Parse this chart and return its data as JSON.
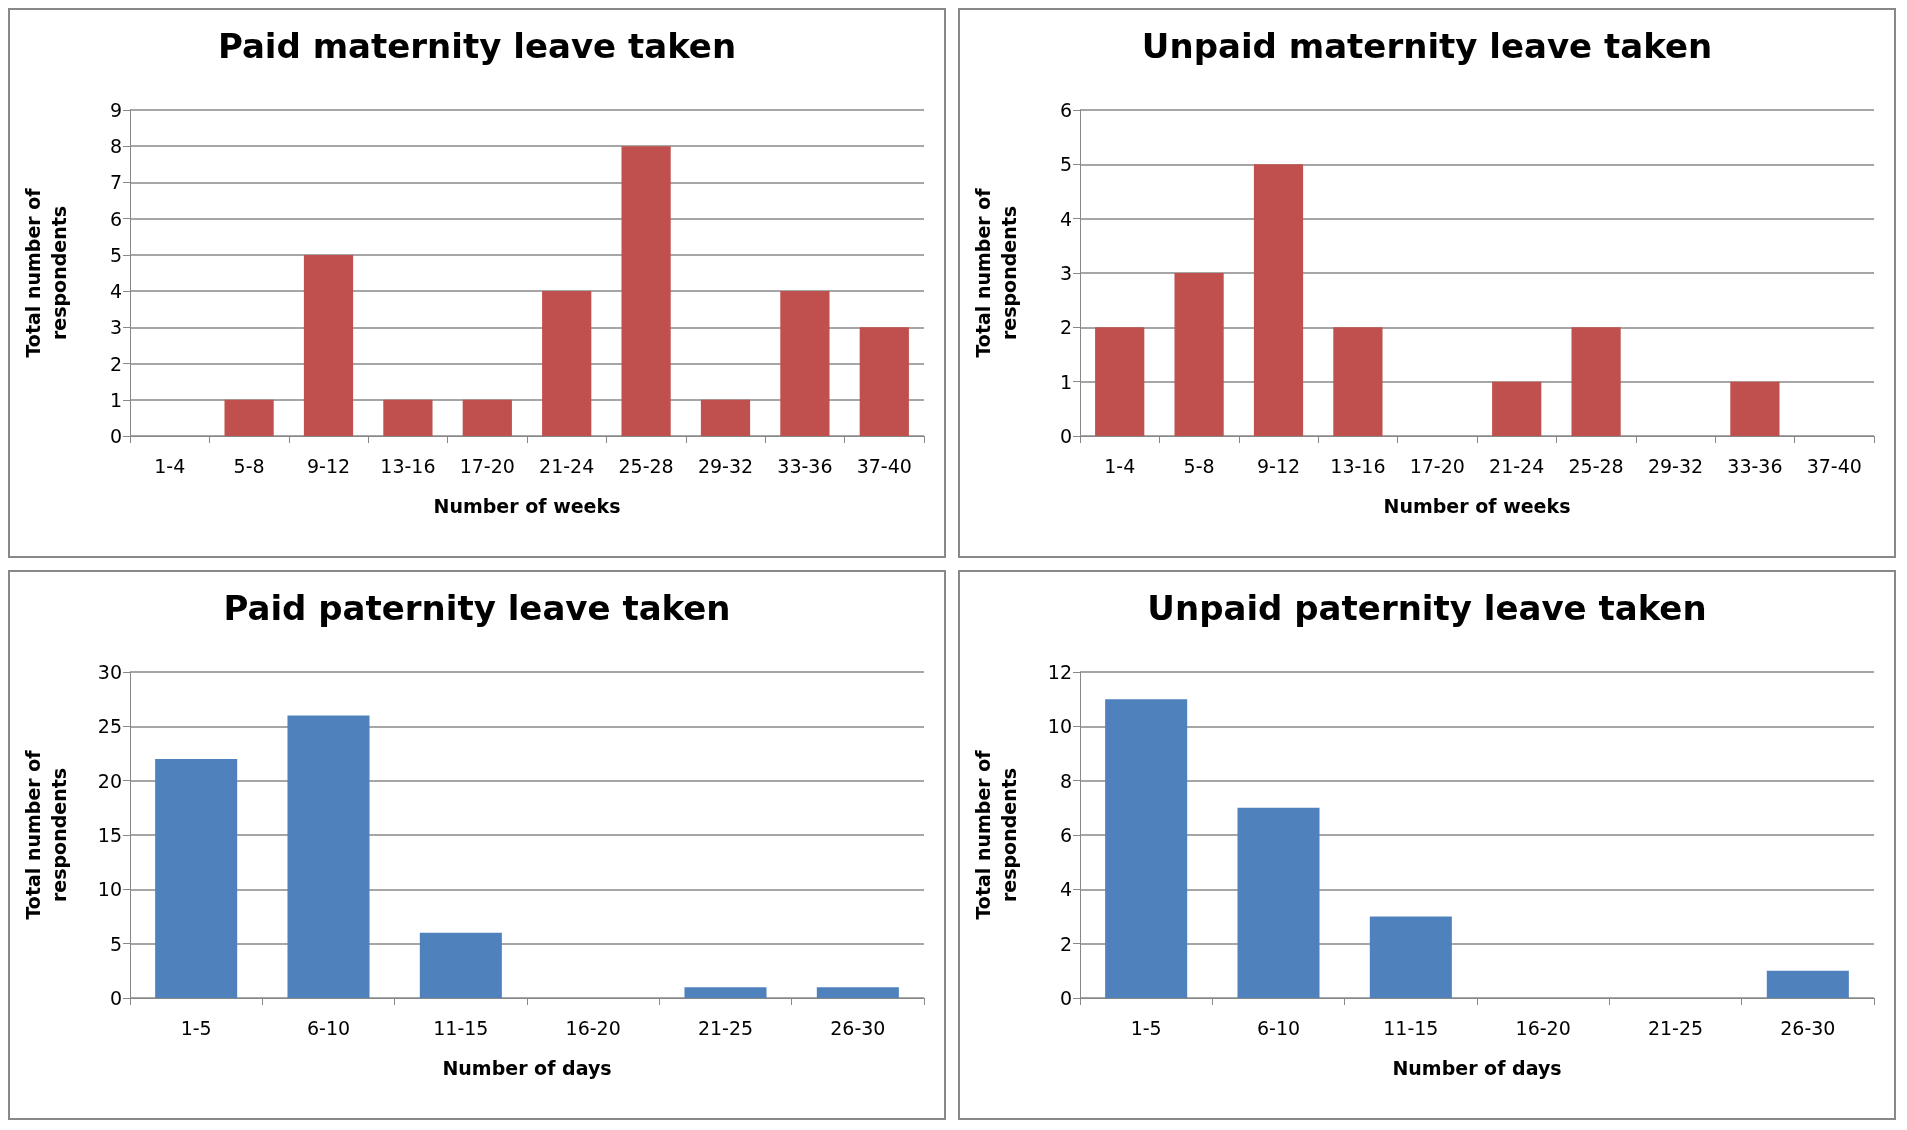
{
  "chart_data": [
    {
      "type": "bar",
      "title": "Paid maternity leave taken",
      "xlabel": "Number of weeks",
      "ylabel": "Total number of respondents",
      "categories": [
        "1-4",
        "5-8",
        "9-12",
        "13-16",
        "17-20",
        "21-24",
        "25-28",
        "29-32",
        "33-36",
        "37-40"
      ],
      "values": [
        0,
        1,
        5,
        1,
        1,
        4,
        8,
        1,
        4,
        3
      ],
      "color": "#c0504d",
      "ylim": [
        0,
        9
      ],
      "yticks": [
        0,
        1,
        2,
        3,
        4,
        5,
        6,
        7,
        8,
        9
      ],
      "grid": "y"
    },
    {
      "type": "bar",
      "title": "Unpaid maternity leave taken",
      "xlabel": "Number of weeks",
      "ylabel": "Total number of respondents",
      "categories": [
        "1-4",
        "5-8",
        "9-12",
        "13-16",
        "17-20",
        "21-24",
        "25-28",
        "29-32",
        "33-36",
        "37-40"
      ],
      "values": [
        2,
        3,
        5,
        2,
        0,
        1,
        2,
        0,
        1,
        0
      ],
      "color": "#c0504d",
      "ylim": [
        0,
        6
      ],
      "yticks": [
        0,
        1,
        2,
        3,
        4,
        5,
        6
      ],
      "grid": "y"
    },
    {
      "type": "bar",
      "title": "Paid paternity leave taken",
      "xlabel": "Number of days",
      "ylabel": "Total number of respondents",
      "categories": [
        "1-5",
        "6-10",
        "11-15",
        "16-20",
        "21-25",
        "26-30"
      ],
      "values": [
        22,
        26,
        6,
        0,
        1,
        1
      ],
      "color": "#4f81bd",
      "ylim": [
        0,
        30
      ],
      "yticks": [
        0,
        5,
        10,
        15,
        20,
        25,
        30
      ],
      "grid": "y"
    },
    {
      "type": "bar",
      "title": "Unpaid paternity leave taken",
      "xlabel": "Number of days",
      "ylabel": "Total number of respondents",
      "categories": [
        "1-5",
        "6-10",
        "11-15",
        "16-20",
        "21-25",
        "26-30"
      ],
      "values": [
        11,
        7,
        3,
        0,
        0,
        1
      ],
      "color": "#4f81bd",
      "ylim": [
        0,
        12
      ],
      "yticks": [
        0,
        2,
        4,
        6,
        8,
        10,
        12
      ],
      "grid": "y"
    }
  ]
}
